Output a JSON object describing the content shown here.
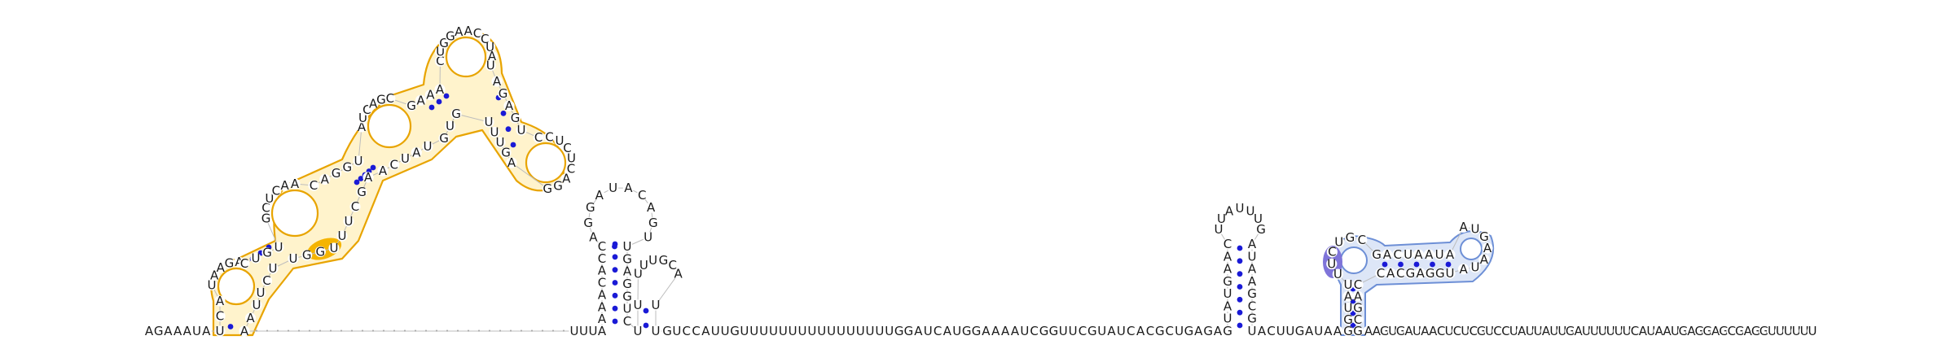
{
  "structure": {
    "sequence": "AGAAAUAUCAUAAGACUGUGCUCAACAGGUAUCAGCGAAACUGGAACCUAUAGAGUCCUCUCAGGAGUUUGUGUAUCAAGCUUUGGUUCUUAAGUUUCGUCAAUUUUGUCUAAGGAGGGUCAUUUUAAAACACCAGGAUACAGUUGAGGUCUUUUUGCAUUGUCCAUUGUUUUUUUUUUUUUUUUGGAUCAUGGAAAAUCGGUUCGUAUCACGCUGAGAGUAUGAACUUAUUUGAUAAGCGUACUUGAUAAGGUAUUUCUGCGACUAAUAAUGAAUAUGGAGCACCAGCGAAGUGAUAACUCUCGUCCUAUUAUUGAUUUUUUCAUAAUGAGGAGCGAGGUUUUUU",
    "colors": {
      "nucleotide": "#1a1a1a",
      "base_pair": "#1a1ad6",
      "highlight_orange": "#e8a400",
      "highlight_orange_fill": "#fff3cc",
      "highlight_orange_strong": "#f5b400",
      "highlight_blue": "#6d8fd6",
      "highlight_blue_fill": "#dde6f7",
      "highlight_blue_strong": "#7f74d9"
    }
  }
}
